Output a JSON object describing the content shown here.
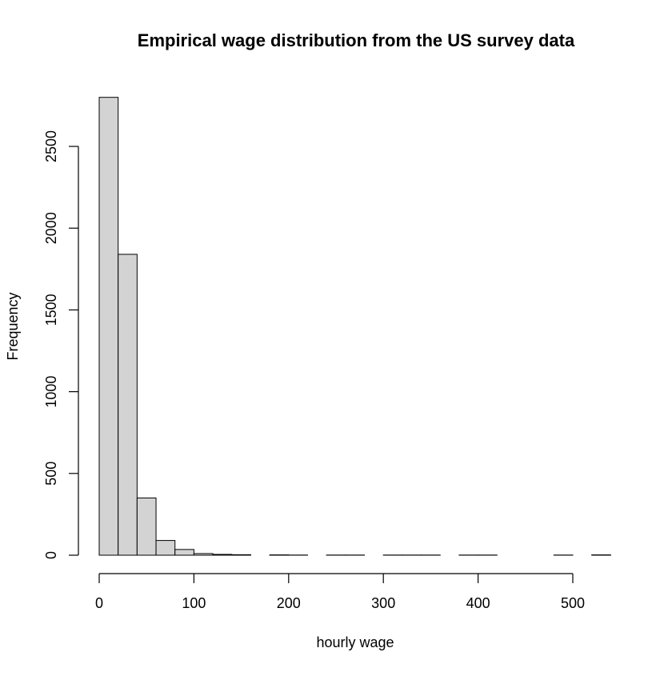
{
  "chart_data": {
    "type": "bar",
    "title": "Empirical wage distribution from the US survey data",
    "xlabel": "hourly wage",
    "ylabel": "Frequency",
    "bar_color": "#d3d3d3",
    "border_color": "#000000",
    "bin_width": 20,
    "xlim": [
      0,
      540
    ],
    "ylim": [
      0,
      2800
    ],
    "x_ticks": [
      0,
      100,
      200,
      300,
      400,
      500
    ],
    "y_ticks": [
      0,
      500,
      1000,
      1500,
      2000,
      2500
    ],
    "grid": false,
    "legend": "none",
    "bins": [
      {
        "start": 0,
        "end": 20,
        "count": 2800
      },
      {
        "start": 20,
        "end": 40,
        "count": 1840
      },
      {
        "start": 40,
        "end": 60,
        "count": 350
      },
      {
        "start": 60,
        "end": 80,
        "count": 90
      },
      {
        "start": 80,
        "end": 100,
        "count": 35
      },
      {
        "start": 100,
        "end": 120,
        "count": 10
      },
      {
        "start": 120,
        "end": 140,
        "count": 5
      },
      {
        "start": 140,
        "end": 160,
        "count": 3
      },
      {
        "start": 160,
        "end": 180,
        "count": 0
      },
      {
        "start": 180,
        "end": 200,
        "count": 2
      },
      {
        "start": 200,
        "end": 220,
        "count": 1
      },
      {
        "start": 220,
        "end": 240,
        "count": 0
      },
      {
        "start": 240,
        "end": 260,
        "count": 1
      },
      {
        "start": 260,
        "end": 280,
        "count": 1
      },
      {
        "start": 280,
        "end": 300,
        "count": 0
      },
      {
        "start": 300,
        "end": 320,
        "count": 1
      },
      {
        "start": 320,
        "end": 340,
        "count": 1
      },
      {
        "start": 340,
        "end": 360,
        "count": 1
      },
      {
        "start": 360,
        "end": 380,
        "count": 0
      },
      {
        "start": 380,
        "end": 400,
        "count": 1
      },
      {
        "start": 400,
        "end": 420,
        "count": 1
      },
      {
        "start": 420,
        "end": 440,
        "count": 0
      },
      {
        "start": 440,
        "end": 460,
        "count": 0
      },
      {
        "start": 460,
        "end": 480,
        "count": 0
      },
      {
        "start": 480,
        "end": 500,
        "count": 1
      },
      {
        "start": 500,
        "end": 520,
        "count": 0
      },
      {
        "start": 520,
        "end": 540,
        "count": 2
      }
    ]
  }
}
